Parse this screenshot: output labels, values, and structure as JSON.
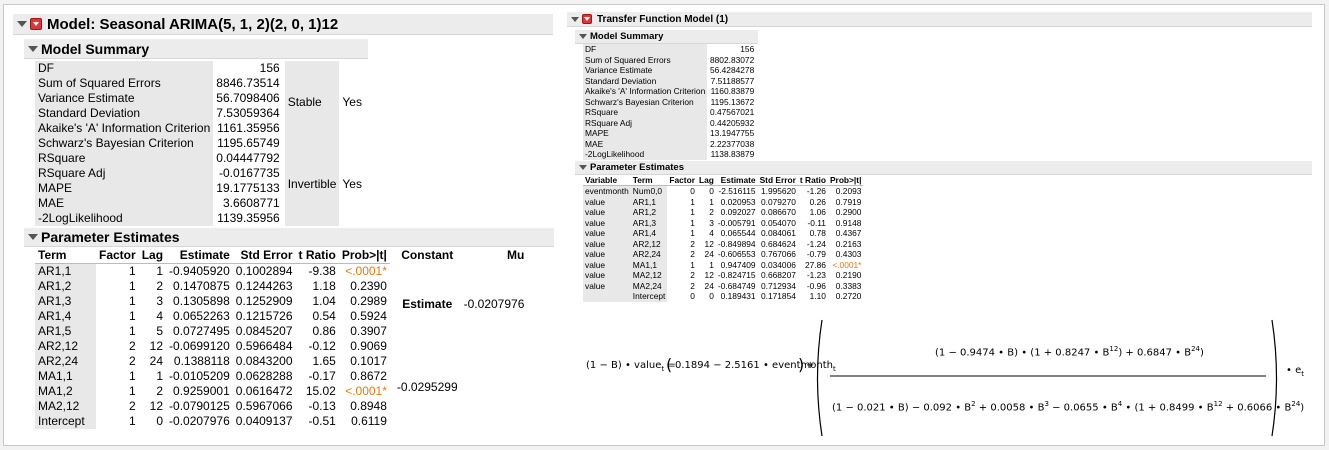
{
  "left": {
    "title": "Model: Seasonal ARIMA(5, 1, 2)(2, 0, 1)12",
    "summary": {
      "title": "Model Summary",
      "rows": [
        {
          "label": "DF",
          "value": "156"
        },
        {
          "label": "Sum of Squared Errors",
          "value": "8846.73514"
        },
        {
          "label": "Variance Estimate",
          "value": "56.7098406"
        },
        {
          "label": "Standard Deviation",
          "value": "7.53059364"
        },
        {
          "label": "Akaike's 'A' Information Criterion",
          "value": "1161.35956"
        },
        {
          "label": "Schwarz's Bayesian Criterion",
          "value": "1195.65749"
        },
        {
          "label": "RSquare",
          "value": "0.04447792"
        },
        {
          "label": "RSquare Adj",
          "value": "-0.0167735"
        },
        {
          "label": "MAPE",
          "value": "19.1775133"
        },
        {
          "label": "MAE",
          "value": "3.6608771"
        },
        {
          "label": "-2LogLikelihood",
          "value": "1139.35956"
        }
      ],
      "side": [
        {
          "label": "Stable",
          "value": "Yes"
        },
        {
          "label": "Invertible",
          "value": "Yes"
        }
      ]
    },
    "params": {
      "title": "Parameter Estimates",
      "headers": [
        "Term",
        "Factor",
        "Lag",
        "Estimate",
        "Std Error",
        "t Ratio",
        "Prob>|t|"
      ],
      "rows": [
        [
          "AR1,1",
          "1",
          "1",
          "-0.9405920",
          "0.1002894",
          "-9.38",
          "<.0001*"
        ],
        [
          "AR1,2",
          "1",
          "2",
          "0.1470875",
          "0.1244263",
          "1.18",
          "0.2390"
        ],
        [
          "AR1,3",
          "1",
          "3",
          "0.1305898",
          "0.1252909",
          "1.04",
          "0.2989"
        ],
        [
          "AR1,4",
          "1",
          "4",
          "0.0652263",
          "0.1215726",
          "0.54",
          "0.5924"
        ],
        [
          "AR1,5",
          "1",
          "5",
          "0.0727495",
          "0.0845207",
          "0.86",
          "0.3907"
        ],
        [
          "AR2,12",
          "2",
          "12",
          "-0.0699120",
          "0.5966484",
          "-0.12",
          "0.9069"
        ],
        [
          "AR2,24",
          "2",
          "24",
          "0.1388118",
          "0.0843200",
          "1.65",
          "0.1017"
        ],
        [
          "MA1,1",
          "1",
          "1",
          "-0.0105209",
          "0.0628288",
          "-0.17",
          "0.8672"
        ],
        [
          "MA1,2",
          "1",
          "2",
          "0.9259001",
          "0.0616472",
          "15.02",
          "<.0001*"
        ],
        [
          "MA2,12",
          "2",
          "12",
          "-0.0790125",
          "0.5967066",
          "-0.13",
          "0.8948"
        ],
        [
          "Intercept",
          "1",
          "0",
          "-0.0207976",
          "0.0409137",
          "-0.51",
          "0.6119"
        ]
      ],
      "side": {
        "h1": "Constant",
        "h2": "Mu",
        "h3": "Estimate",
        "constant": "-0.0295299",
        "mu": "-0.0207976"
      }
    }
  },
  "right": {
    "title": "Transfer Function Model (1)",
    "summary": {
      "title": "Model Summary",
      "rows": [
        {
          "label": "DF",
          "value": "156"
        },
        {
          "label": "Sum of Squared Errors",
          "value": "8802.83072"
        },
        {
          "label": "Variance Estimate",
          "value": "56.4284278"
        },
        {
          "label": "Standard Deviation",
          "value": "7.51188577"
        },
        {
          "label": "Akaike's 'A' Information Criterion",
          "value": "1160.83879"
        },
        {
          "label": "Schwarz's Bayesian Criterion",
          "value": "1195.13672"
        },
        {
          "label": "RSquare",
          "value": "0.47567021"
        },
        {
          "label": "RSquare Adj",
          "value": "0.44205932"
        },
        {
          "label": "MAPE",
          "value": "13.1947755"
        },
        {
          "label": "MAE",
          "value": "2.22377038"
        },
        {
          "label": "-2LogLikelihood",
          "value": "1138.83879"
        }
      ]
    },
    "params": {
      "title": "Parameter Estimates",
      "headers": [
        "Variable",
        "Term",
        "Factor",
        "Lag",
        "Estimate",
        "Std Error",
        "t Ratio",
        "Prob>|t|"
      ],
      "rows": [
        [
          "eventmonth",
          "Num0,0",
          "0",
          "0",
          "-2.516115",
          "1.995620",
          "-1.26",
          "0.2093"
        ],
        [
          "value",
          "AR1,1",
          "1",
          "1",
          "0.020953",
          "0.079270",
          "0.26",
          "0.7919"
        ],
        [
          "value",
          "AR1,2",
          "1",
          "2",
          "0.092027",
          "0.086670",
          "1.06",
          "0.2900"
        ],
        [
          "value",
          "AR1,3",
          "1",
          "3",
          "-0.005791",
          "0.054070",
          "-0.11",
          "0.9148"
        ],
        [
          "value",
          "AR1,4",
          "1",
          "4",
          "0.065544",
          "0.084061",
          "0.78",
          "0.4367"
        ],
        [
          "value",
          "AR2,12",
          "2",
          "12",
          "-0.849894",
          "0.684624",
          "-1.24",
          "0.2163"
        ],
        [
          "value",
          "AR2,24",
          "2",
          "24",
          "-0.606553",
          "0.767066",
          "-0.79",
          "0.4303"
        ],
        [
          "value",
          "MA1,1",
          "1",
          "1",
          "0.947409",
          "0.034006",
          "27.86",
          "<.0001*"
        ],
        [
          "value",
          "MA2,12",
          "2",
          "12",
          "-0.824715",
          "0.668207",
          "-1.23",
          "0.2190"
        ],
        [
          "value",
          "MA2,24",
          "2",
          "24",
          "-0.684749",
          "0.712934",
          "-0.96",
          "0.3383"
        ],
        [
          "",
          "Intercept",
          "0",
          "0",
          "0.189431",
          "0.171854",
          "1.10",
          "0.2720"
        ]
      ]
    },
    "equation": {
      "lhs_op": "(1 − B)",
      "lhs_var": "value",
      "sub_t": "t",
      "eq": "=",
      "rhs_open": "(",
      "intercept": "0.1894",
      "minus": "−",
      "coef": "2.5161",
      "dot": "•",
      "regvar": "eventmonth",
      "rhs_close": ")",
      "plus": "+",
      "num": {
        "a": "(1 − 0.9474 • B)",
        "b": "(1 + 0.8247 • B",
        "b_exp": "12",
        "c": ") + 0.6847 • B",
        "c_exp": "24",
        "d": ")"
      },
      "den": {
        "p1": "(1 − 0.021 • B) − 0.092 • B",
        "e2": "2",
        "p2": " + 0.0058 • B",
        "e3": "3",
        "p3": " − 0.0655 • B",
        "e4": "4",
        "p4": " • (1 + 0.8499 • B",
        "e12": "12",
        "p5": " + 0.6066 • B",
        "e24": "24",
        "p6": ")"
      },
      "err": "e",
      "err_sub": "t"
    }
  }
}
